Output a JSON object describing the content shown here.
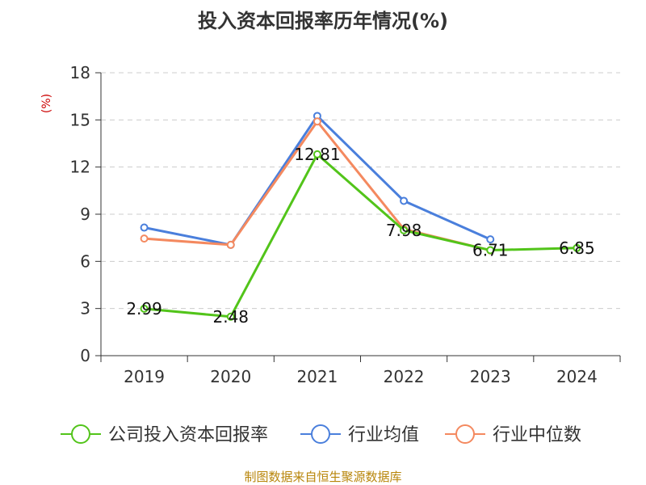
{
  "chart_data": {
    "type": "line",
    "title": "投入资本回报率历年情况(%)",
    "ylabel": "(%)",
    "xlabel": "",
    "categories": [
      "2019",
      "2020",
      "2021",
      "2022",
      "2023",
      "2024"
    ],
    "ylim": [
      0,
      18
    ],
    "yticks": [
      0,
      3,
      6,
      9,
      12,
      15,
      18
    ],
    "grid": true,
    "legend_position": "bottom",
    "series": [
      {
        "name": "公司投入资本回报率",
        "color": "#52c41a",
        "values": [
          2.99,
          2.48,
          12.81,
          7.98,
          6.71,
          6.85
        ],
        "labels": [
          "2.99",
          "2.48",
          "12.81",
          "7.98",
          "6.71",
          "6.85"
        ]
      },
      {
        "name": "行业均值",
        "color": "#4a7fdc",
        "values": [
          8.15,
          7.05,
          15.25,
          9.85,
          7.4,
          null
        ]
      },
      {
        "name": "行业中位数",
        "color": "#f4895f",
        "values": [
          7.45,
          7.05,
          14.9,
          8.05,
          6.7,
          null
        ]
      }
    ]
  },
  "source": "制图数据来自恒生聚源数据库"
}
